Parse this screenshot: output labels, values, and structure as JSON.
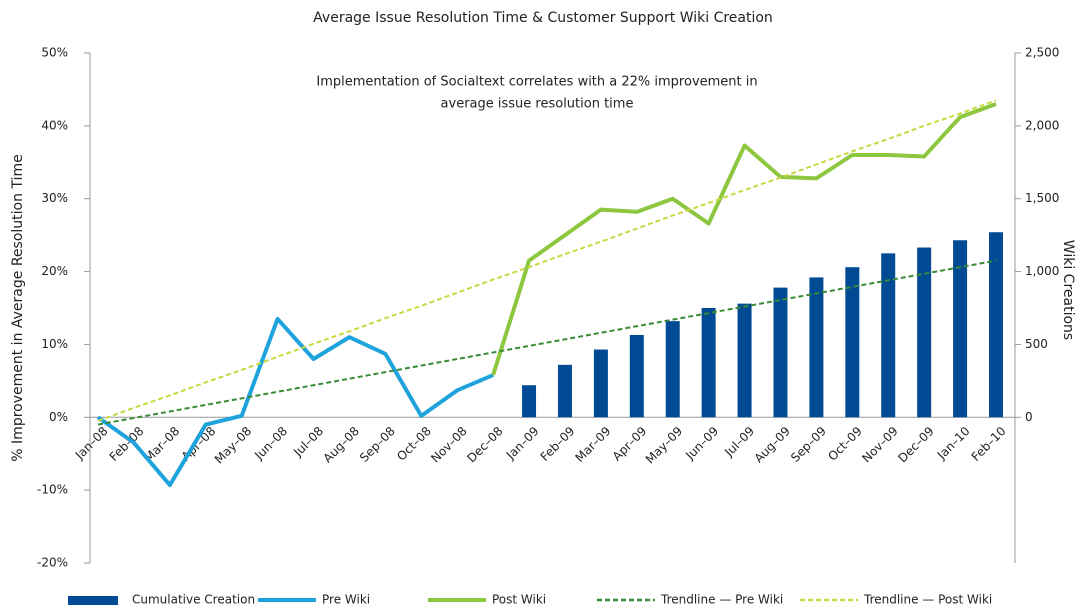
{
  "chart_data": {
    "type": "combo",
    "title": "Average Issue Resolution Time & Customer Support Wiki Creation",
    "annotation": [
      "Implementation of Socialtext correlates with a 22% improvement in",
      "average issue resolution time"
    ],
    "ylabel": "% Improvement in Average Resolution Time",
    "y2label": "Wiki Creations",
    "categories": [
      "Jan–08",
      "Feb–08",
      "Mar–08",
      "Apr–08",
      "May–08",
      "Jun–08",
      "Jul–08",
      "Aug–08",
      "Sep–08",
      "Oct–08",
      "Nov–08",
      "Dec–08",
      "Jan–09",
      "Feb–09",
      "Mar–09",
      "Apr–09",
      "May–09",
      "Jun–09",
      "Jul–09",
      "Aug–09",
      "Sep–09",
      "Oct–09",
      "Nov–09",
      "Dec–09",
      "Jan–10",
      "Feb–10"
    ],
    "ylim": [
      -20,
      50
    ],
    "yticks": [
      {
        "value": -20,
        "label": "-20%"
      },
      {
        "value": -10,
        "label": "-10%"
      },
      {
        "value": 0,
        "label": "0%"
      },
      {
        "value": 10,
        "label": "10%"
      },
      {
        "value": 20,
        "label": "20%"
      },
      {
        "value": 30,
        "label": "30%"
      },
      {
        "value": 40,
        "label": "40%"
      },
      {
        "value": 50,
        "label": "50%"
      }
    ],
    "y2lim": [
      -1000,
      2500
    ],
    "y2ticks": [
      0,
      500,
      {
        "value": 1000,
        "label": "1,000"
      },
      {
        "value": 1500,
        "label": "1,500"
      },
      {
        "value": 2000,
        "label": "2,000"
      },
      {
        "value": 2500,
        "label": "2,500"
      }
    ],
    "series": [
      {
        "name": "Cumulative Creation",
        "type": "bar",
        "axis": "y2",
        "color": "#004b93",
        "values": [
          null,
          null,
          null,
          null,
          null,
          null,
          null,
          null,
          null,
          null,
          null,
          null,
          220,
          360,
          465,
          565,
          660,
          750,
          780,
          890,
          960,
          1030,
          1125,
          1165,
          1215,
          1270
        ]
      },
      {
        "name": "Pre Wiki",
        "type": "line",
        "color": "#1fa3dd",
        "values": [
          0,
          -3.5,
          -9.3,
          -1,
          0.2,
          13.5,
          8,
          11,
          8.7,
          0.2,
          3.7,
          5.8,
          null,
          null,
          null,
          null,
          null,
          null,
          null,
          null,
          null,
          null,
          null,
          null,
          null,
          null
        ]
      },
      {
        "name": "Post Wiki",
        "type": "line",
        "color": "#8dc63f",
        "values": [
          null,
          null,
          null,
          null,
          null,
          null,
          null,
          null,
          null,
          null,
          null,
          5.8,
          21.5,
          25,
          28.5,
          28.2,
          30,
          26.6,
          37.3,
          33,
          32.8,
          36,
          36,
          35.8,
          41.2,
          43
        ]
      },
      {
        "name": "Trendline — Pre Wiki",
        "type": "line",
        "dash": true,
        "color": "#3a8a3a",
        "values": [
          -1,
          -0.1,
          0.8,
          1.7,
          2.6,
          3.5,
          4.4,
          5.3,
          6.2,
          7.1,
          8,
          8.9,
          9.8,
          10.7,
          11.6,
          12.5,
          13.4,
          14.3,
          15.2,
          16.1,
          17,
          17.9,
          18.8,
          19.7,
          20.6,
          21.5
        ]
      },
      {
        "name": "Trendline — Post Wiki",
        "type": "line",
        "dash": true,
        "color": "#c8d940",
        "values": [
          -0.5,
          1.3,
          3.0,
          4.8,
          6.5,
          8.3,
          10.1,
          11.8,
          13.6,
          15.3,
          17.1,
          18.9,
          20.6,
          22.4,
          24.1,
          25.9,
          27.7,
          29.4,
          31.2,
          32.9,
          34.7,
          36.5,
          38.2,
          40.0,
          41.7,
          43.5
        ]
      }
    ]
  }
}
